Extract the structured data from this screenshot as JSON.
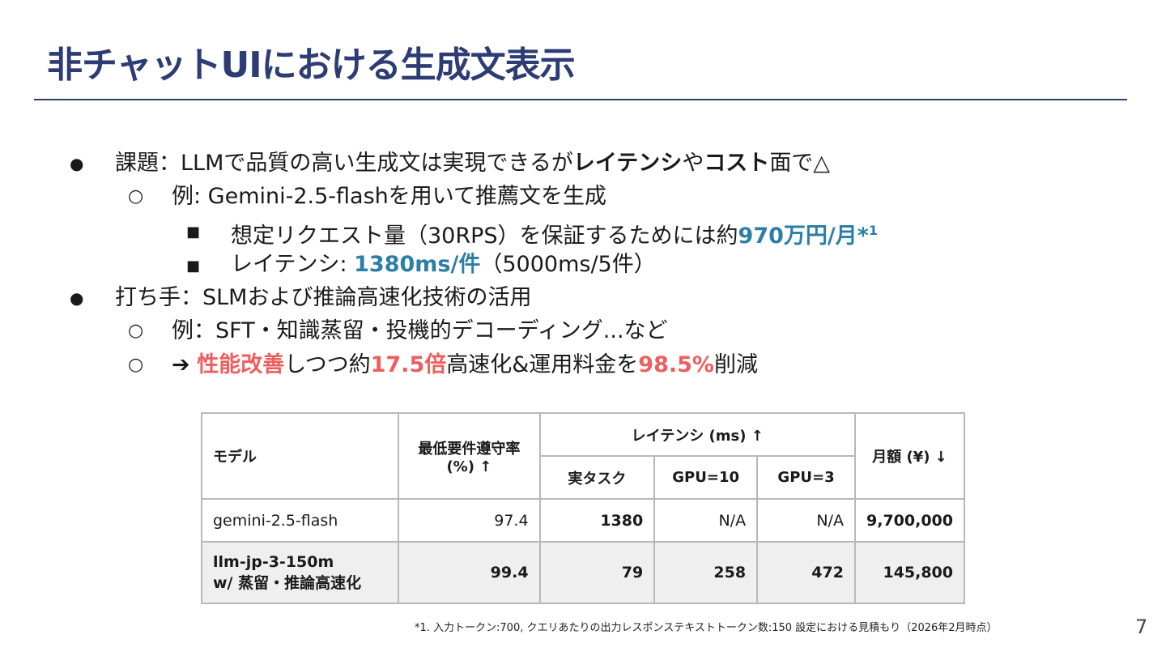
{
  "title": "非チャットUIにおける生成文表示",
  "bullets": {
    "b1": {
      "marker": "●",
      "prefix": "課題：LLMで品質の高い生成文は実現できるが",
      "bold1": "レイテンシ",
      "mid": "や",
      "bold2": "コスト",
      "suffix": "面で△",
      "sub": {
        "marker": "○",
        "text": "例: Gemini-2.5-flashを用いて推薦文を生成",
        "items": [
          {
            "marker": "■",
            "prefix": "想定リクエスト量（30RPS）を保証するためには約",
            "highlight": "970万円/月*",
            "sup": "1"
          },
          {
            "marker": "■",
            "prefix": "レイテンシ: ",
            "highlight": "1380ms/件",
            "suffix": "（5000ms/5件）"
          }
        ]
      }
    },
    "b2": {
      "marker": "●",
      "text": "打ち手：SLMおよび推論高速化技術の活用",
      "sub1": {
        "marker": "○",
        "text": "例：SFT・知識蒸留・投機的デコーディング...など"
      },
      "sub2": {
        "marker": "○",
        "arrow": "➔",
        "red1": "性能改善",
        "mid1": "しつつ約",
        "red2": "17.5倍",
        "mid2": "高速化&運用料金を",
        "red3": "98.5%",
        "suffix": "削減"
      }
    }
  },
  "table": {
    "headers": {
      "model": "モデル",
      "compliance": "最低要件遵守率 (%) ↑",
      "latency": "レイテンシ (ms) ↑",
      "real_task": "実タスク",
      "gpu10": "GPU=10",
      "gpu3": "GPU=3",
      "monthly": "月額 (¥) ↓"
    },
    "rows": [
      {
        "model": "gemini-2.5-flash",
        "compliance": "97.4",
        "real_task": "1380",
        "gpu10": "N/A",
        "gpu3": "N/A",
        "monthly": "9,700,000"
      },
      {
        "model_line1": "llm-jp-3-150m",
        "model_line2": "w/ 蒸留・推論高速化",
        "compliance": "99.4",
        "real_task": "79",
        "gpu10": "258",
        "gpu3": "472",
        "monthly": "145,800"
      }
    ]
  },
  "footnote": "*1.  入力トークン:700, クエリあたりの出力レスポンステキストトークン数:150 設定における見積もり（2026年2月時点）",
  "page_number": "7",
  "colors": {
    "title": "#2d3c75",
    "highlight_blue": "#2b7fa6",
    "highlight_red": "#ef5e5e"
  }
}
